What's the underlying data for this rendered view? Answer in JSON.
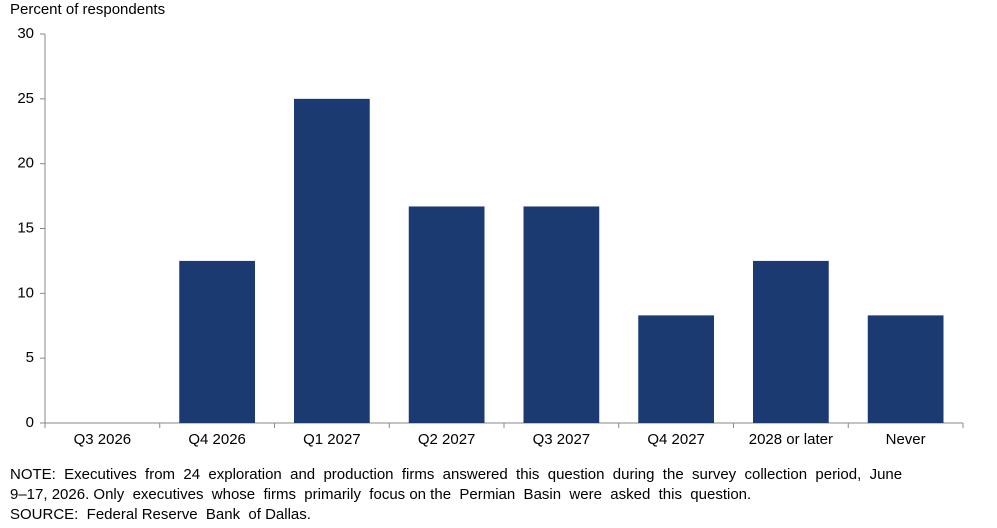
{
  "chart_data": {
    "type": "bar",
    "y_label": "Percent of respondents",
    "categories": [
      "Q3 2026",
      "Q4 2026",
      "Q1 2027",
      "Q2 2027",
      "Q3 2027",
      "Q4 2027",
      "2028 or later",
      "Never"
    ],
    "values": [
      0,
      12.5,
      25,
      16.7,
      16.7,
      8.3,
      12.5,
      8.3
    ],
    "color": "#1c3a72",
    "ylim": [
      0,
      30
    ],
    "yticks": [
      0,
      5,
      10,
      15,
      20,
      25,
      30
    ],
    "grid": false,
    "notes": [
      "NOTE:  Executives  from  24  exploration  and  production  firms  answered  this  question  during  the  survey  collection  period,  June",
      "9–17, 2026. Only  executives  whose  firms  primarily  focus on the  Permian  Basin  were  asked  this  question.",
      "SOURCE:  Federal Reserve  Bank  of Dallas."
    ]
  }
}
